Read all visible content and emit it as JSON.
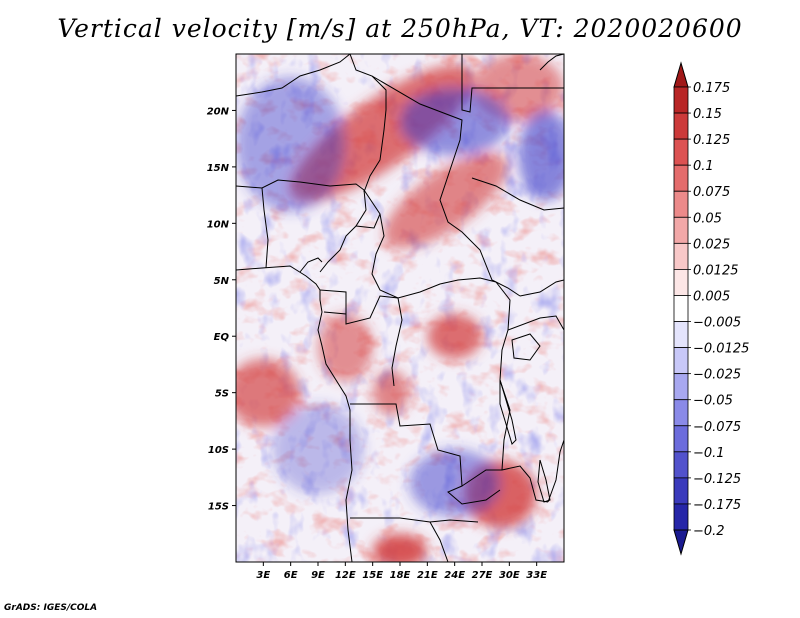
{
  "title": "Vertical velocity [m/s] at 250hPa, VT: 2020020600",
  "footer": "GrADS: IGES/COLA",
  "map": {
    "lon_range": [
      0,
      36
    ],
    "lat_range": [
      -20,
      25
    ],
    "lat_ticks": [
      {
        "value": 20,
        "label": "20N"
      },
      {
        "value": 15,
        "label": "15N"
      },
      {
        "value": 10,
        "label": "10N"
      },
      {
        "value": 5,
        "label": "5N"
      },
      {
        "value": 0,
        "label": "EQ"
      },
      {
        "value": -5,
        "label": "5S"
      },
      {
        "value": -10,
        "label": "10S"
      },
      {
        "value": -15,
        "label": "15S"
      }
    ],
    "lon_ticks": [
      {
        "value": 3,
        "label": "3E"
      },
      {
        "value": 6,
        "label": "6E"
      },
      {
        "value": 9,
        "label": "9E"
      },
      {
        "value": 12,
        "label": "12E"
      },
      {
        "value": 15,
        "label": "15E"
      },
      {
        "value": 18,
        "label": "18E"
      },
      {
        "value": 21,
        "label": "21E"
      },
      {
        "value": 24,
        "label": "24E"
      },
      {
        "value": 27,
        "label": "27E"
      },
      {
        "value": 30,
        "label": "30E"
      },
      {
        "value": 33,
        "label": "33E"
      }
    ],
    "features": [
      {
        "type": "ascent-band",
        "lon": 16,
        "lat": 18,
        "dlon": 12,
        "dlat": 3,
        "strength": 0.12
      },
      {
        "type": "ascent-band",
        "lon": 23,
        "lat": 12,
        "dlon": 8,
        "dlat": 2.5,
        "strength": 0.1
      },
      {
        "type": "ascent-patch",
        "lon": 31,
        "lat": 22,
        "dlon": 5,
        "dlat": 3,
        "strength": 0.09
      },
      {
        "type": "ascent-patch",
        "lon": 3,
        "lat": -5,
        "dlon": 4,
        "dlat": 3,
        "strength": 0.11
      },
      {
        "type": "ascent-patch",
        "lon": 12,
        "lat": -1,
        "dlon": 3,
        "dlat": 3,
        "strength": 0.09
      },
      {
        "type": "ascent-patch",
        "lon": 24,
        "lat": 0,
        "dlon": 3,
        "dlat": 2,
        "strength": 0.12
      },
      {
        "type": "ascent-patch",
        "lon": 29,
        "lat": -14,
        "dlon": 4,
        "dlat": 3,
        "strength": 0.13
      },
      {
        "type": "ascent-patch",
        "lon": 18,
        "lat": -19,
        "dlon": 3,
        "dlat": 1.5,
        "strength": 0.15
      },
      {
        "type": "ascent-patch",
        "lon": 17,
        "lat": -5,
        "dlon": 2,
        "dlat": 2,
        "strength": 0.1
      },
      {
        "type": "subsidence-patch",
        "lon": 6,
        "lat": 17,
        "dlon": 6,
        "dlat": 6,
        "strength": -0.07
      },
      {
        "type": "subsidence-patch",
        "lon": 24,
        "lat": 19,
        "dlon": 6,
        "dlat": 3,
        "strength": -0.09
      },
      {
        "type": "subsidence-patch",
        "lon": 34,
        "lat": 16,
        "dlon": 3,
        "dlat": 4,
        "strength": -0.1
      },
      {
        "type": "subsidence-patch",
        "lon": 9,
        "lat": -10,
        "dlon": 5,
        "dlat": 4,
        "strength": -0.05
      },
      {
        "type": "subsidence-patch",
        "lon": 24,
        "lat": -13,
        "dlon": 5,
        "dlat": 3,
        "strength": -0.08
      }
    ]
  },
  "colorbar": {
    "levels": [
      "0.175",
      "0.15",
      "0.125",
      "0.1",
      "0.075",
      "0.05",
      "0.025",
      "0.0125",
      "0.005",
      "−0.005",
      "−0.0125",
      "−0.025",
      "−0.05",
      "−0.075",
      "−0.1",
      "−0.125",
      "−0.175",
      "−0.2"
    ],
    "colors": [
      "#a01818",
      "#b82626",
      "#cc3a3a",
      "#dc5252",
      "#e46c6c",
      "#ec8a8a",
      "#f2a8a8",
      "#f8c8c8",
      "#fce6e6",
      "#ffffff",
      "#e4e4fc",
      "#c8c8f8",
      "#a8a8f0",
      "#8a8ae8",
      "#6c6cdc",
      "#5252cc",
      "#3a3abc",
      "#2626a8",
      "#1a1a90"
    ],
    "top_arrow_color": "#a01818",
    "bottom_arrow_color": "#1a1a90"
  }
}
